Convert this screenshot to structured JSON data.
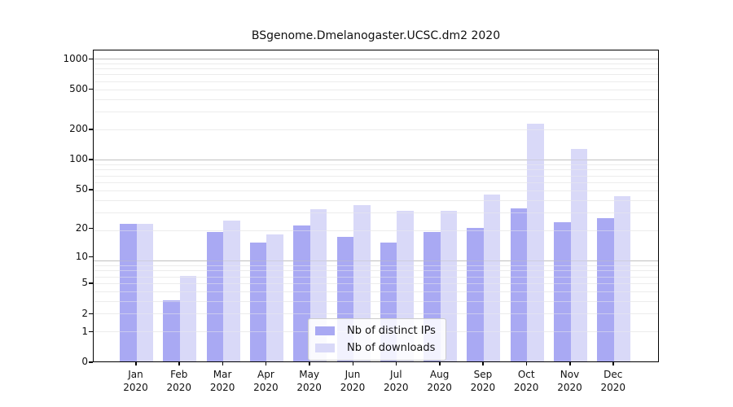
{
  "figure": {
    "title": "BSgenome.Dmelanogaster.UCSC.dm2 2020"
  },
  "chart_data": {
    "type": "bar",
    "title": "BSgenome.Dmelanogaster.UCSC.dm2 2020",
    "xlabel": "",
    "ylabel": "",
    "yscale": "log1p",
    "ylim": [
      0,
      1242
    ],
    "grid": true,
    "legend_position": "inside lower center-right",
    "categories": [
      "Jan 2020",
      "Feb 2020",
      "Mar 2020",
      "Apr 2020",
      "May 2020",
      "Jun 2020",
      "Jul 2020",
      "Aug 2020",
      "Sep 2020",
      "Oct 2020",
      "Nov 2020",
      "Dec 2020"
    ],
    "y_tick_values": [
      0,
      1,
      2,
      5,
      10,
      20,
      50,
      100,
      200,
      500,
      1000
    ],
    "y_tick_labels": [
      "0",
      "1",
      "2",
      "5",
      "10",
      "20",
      "50",
      "100",
      "200",
      "500",
      "1000"
    ],
    "series": [
      {
        "name": "Nb of distinct IPs",
        "color": "#a9a9f3",
        "values": [
          22,
          3,
          18,
          14,
          21,
          16,
          14,
          18,
          20,
          32,
          23,
          25
        ]
      },
      {
        "name": "Nb of downloads",
        "color": "#d9d9f8",
        "values": [
          22,
          6,
          24,
          17,
          31,
          34,
          30,
          30,
          44,
          225,
          127,
          42
        ]
      }
    ]
  },
  "legend": {
    "items": [
      {
        "label": "Nb of distinct IPs"
      },
      {
        "label": "Nb of downloads"
      }
    ]
  },
  "colors": {
    "background": "#ffffff",
    "axis": "#000000",
    "grid_major": "#c0c0c0",
    "grid_minor": "#ececec",
    "bar_distinct_ips": "#a9a9f3",
    "bar_downloads": "#d9d9f8",
    "legend_border": "#cccccc",
    "legend_background": "rgba(255,255,255,0.85)"
  }
}
